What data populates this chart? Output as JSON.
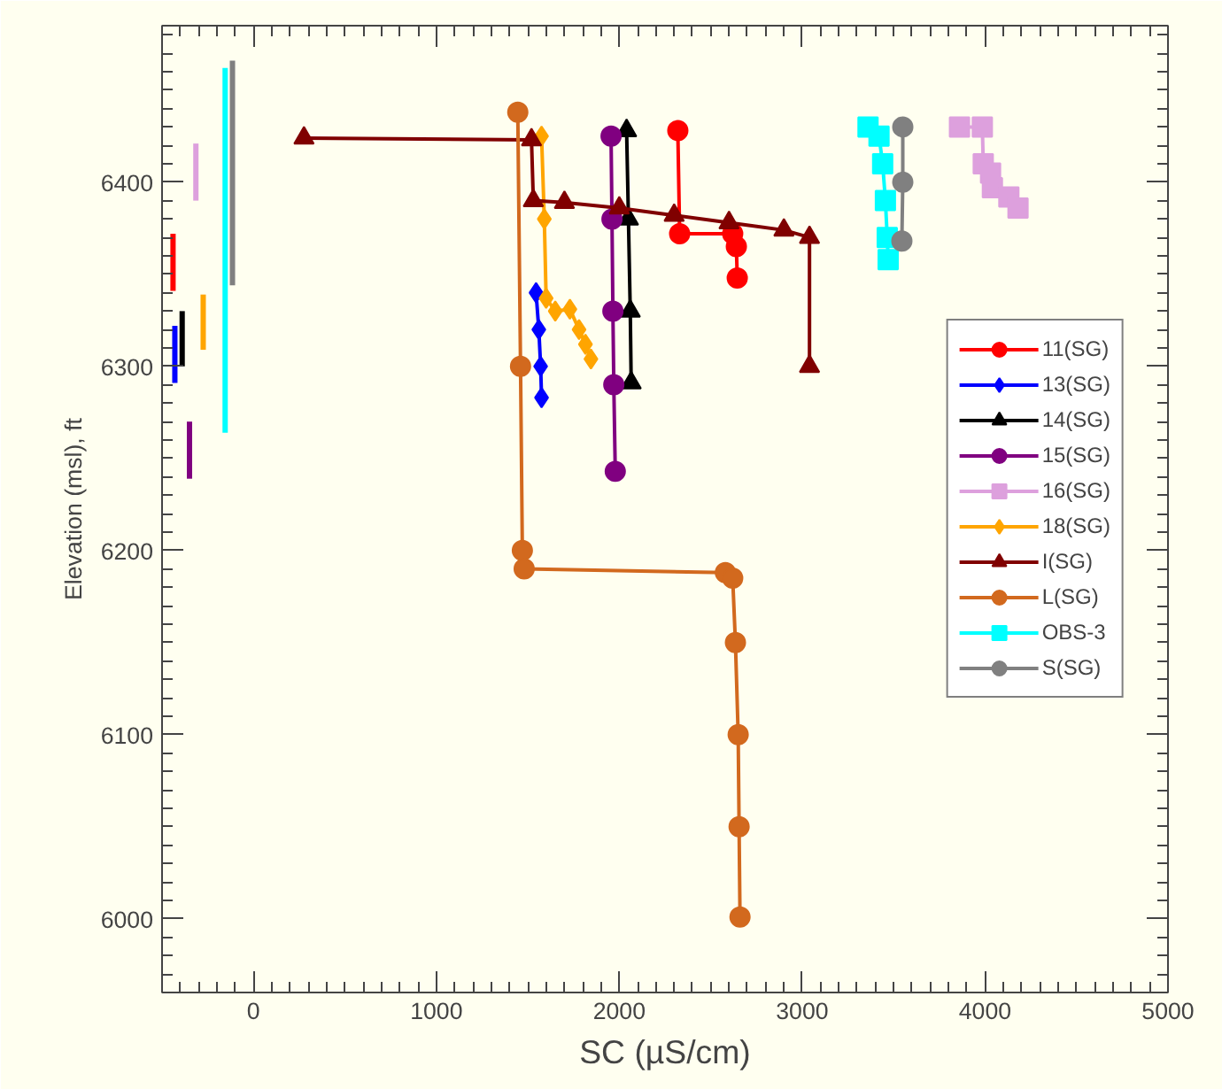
{
  "chart_data": {
    "type": "line",
    "xlabel": "SC (µS/cm)",
    "ylabel": "Elevation (msl), ft",
    "xlim": [
      -500,
      5000
    ],
    "ylim": [
      5960,
      6485
    ],
    "xticks": [
      0,
      1000,
      2000,
      3000,
      4000,
      5000
    ],
    "yticks": [
      6000,
      6100,
      6200,
      6300,
      6400
    ],
    "grid": false,
    "legend": "right",
    "series": [
      {
        "name": "11(SG)",
        "color": "#ff0000",
        "marker": "circle",
        "x": [
          2320,
          2330,
          2620,
          2640,
          2645
        ],
        "values": [
          6428,
          6372,
          6372,
          6365,
          6348
        ]
      },
      {
        "name": "13(SG)",
        "color": "#0000ff",
        "marker": "diamond",
        "x": [
          1545,
          1560,
          1570,
          1575
        ],
        "values": [
          6340,
          6320,
          6300,
          6283
        ]
      },
      {
        "name": "14(SG)",
        "color": "#000000",
        "marker": "triangle",
        "x": [
          2040,
          2050,
          2060,
          2065
        ],
        "values": [
          6428,
          6380,
          6330,
          6291
        ]
      },
      {
        "name": "15(SG)",
        "color": "#800080",
        "marker": "circle",
        "x": [
          1955,
          1960,
          1965,
          1970,
          1978
        ],
        "values": [
          6425,
          6380,
          6330,
          6290,
          6243
        ]
      },
      {
        "name": "16(SG)",
        "color": "#dda0dd",
        "marker": "square",
        "x": [
          3860,
          3985,
          3990,
          4030,
          4040,
          4130,
          4180
        ],
        "values": [
          6430,
          6430,
          6410,
          6405,
          6397,
          6392,
          6386
        ]
      },
      {
        "name": "18(SG)",
        "color": "#ffa500",
        "marker": "diamond",
        "x": [
          1575,
          1590,
          1600,
          1650,
          1730,
          1780,
          1815,
          1845
        ],
        "values": [
          6425,
          6380,
          6337,
          6330,
          6331,
          6320,
          6312,
          6304
        ]
      },
      {
        "name": "I(SG)",
        "color": "#800000",
        "marker": "triangle",
        "x": [
          276,
          1520,
          1530,
          1700,
          2000,
          2300,
          2600,
          2900,
          3040,
          3040
        ],
        "values": [
          6424,
          6423,
          6390,
          6389,
          6386,
          6382,
          6378,
          6374,
          6370,
          6300
        ]
      },
      {
        "name": "L(SG)",
        "color": "#d2691e",
        "marker": "circle",
        "x": [
          1445,
          1460,
          1470,
          1480,
          2580,
          2620,
          2635,
          2650,
          2655,
          2660
        ],
        "values": [
          6438,
          6300,
          6200,
          6190,
          6188,
          6185,
          6150,
          6100,
          6050,
          6001
        ]
      },
      {
        "name": "OBS-3",
        "color": "#00ffff",
        "marker": "square",
        "x": [
          3360,
          3420,
          3440,
          3455,
          3465,
          3470
        ],
        "values": [
          6430,
          6425,
          6410,
          6390,
          6370,
          6358
        ]
      },
      {
        "name": "S(SG)",
        "color": "#808080",
        "marker": "circle",
        "x": [
          3550,
          3550,
          3545
        ],
        "values": [
          6430,
          6400,
          6368
        ]
      },
      {
        "color": "#ff0000",
        "marker": "none",
        "x": [
          -440,
          -440
        ],
        "values": [
          6372,
          6341
        ]
      },
      {
        "color": "#0000ff",
        "marker": "none",
        "x": [
          -430,
          -430
        ],
        "values": [
          6322,
          6291
        ]
      },
      {
        "color": "#000000",
        "marker": "none",
        "x": [
          -390,
          -390
        ],
        "values": [
          6330,
          6300
        ]
      },
      {
        "color": "#800080",
        "marker": "none",
        "x": [
          -350,
          -350
        ],
        "values": [
          6270,
          6239
        ]
      },
      {
        "color": "#dda0dd",
        "marker": "none",
        "x": [
          -315,
          -315
        ],
        "values": [
          6421,
          6390
        ]
      },
      {
        "color": "#ffa500",
        "marker": "none",
        "x": [
          -275,
          -275
        ],
        "values": [
          6339,
          6309
        ]
      },
      {
        "color": "#00ffff",
        "marker": "none",
        "x": [
          -155,
          -155
        ],
        "values": [
          6462,
          6264
        ]
      },
      {
        "color": "#808080",
        "marker": "none",
        "x": [
          -115,
          -115
        ],
        "values": [
          6466,
          6344
        ]
      }
    ]
  }
}
